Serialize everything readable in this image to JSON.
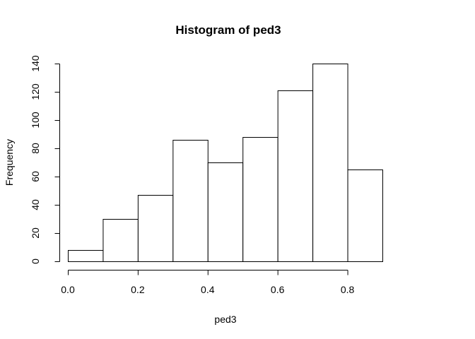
{
  "chart_data": {
    "type": "bar",
    "title": "Histogram of ped3",
    "xlabel": "ped3",
    "ylabel": "Frequency",
    "bin_edges": [
      0.0,
      0.1,
      0.2,
      0.3,
      0.4,
      0.5,
      0.6,
      0.7,
      0.8,
      0.9
    ],
    "values": [
      8,
      30,
      47,
      86,
      70,
      88,
      121,
      140,
      65
    ],
    "xlim": [
      0.0,
      0.9
    ],
    "ylim": [
      0,
      140
    ],
    "x_ticks": [
      0.0,
      0.2,
      0.4,
      0.6,
      0.8
    ],
    "x_tick_labels": [
      "0.0",
      "0.2",
      "0.4",
      "0.6",
      "0.8"
    ],
    "y_ticks": [
      0,
      20,
      40,
      60,
      80,
      100,
      120,
      140
    ],
    "y_tick_labels": [
      "0",
      "20",
      "40",
      "60",
      "80",
      "100",
      "120",
      "140"
    ],
    "grid": false,
    "legend": "none",
    "colors": {
      "bar_fill": "#ffffff",
      "bar_stroke": "#000000",
      "text": "#000000"
    }
  }
}
